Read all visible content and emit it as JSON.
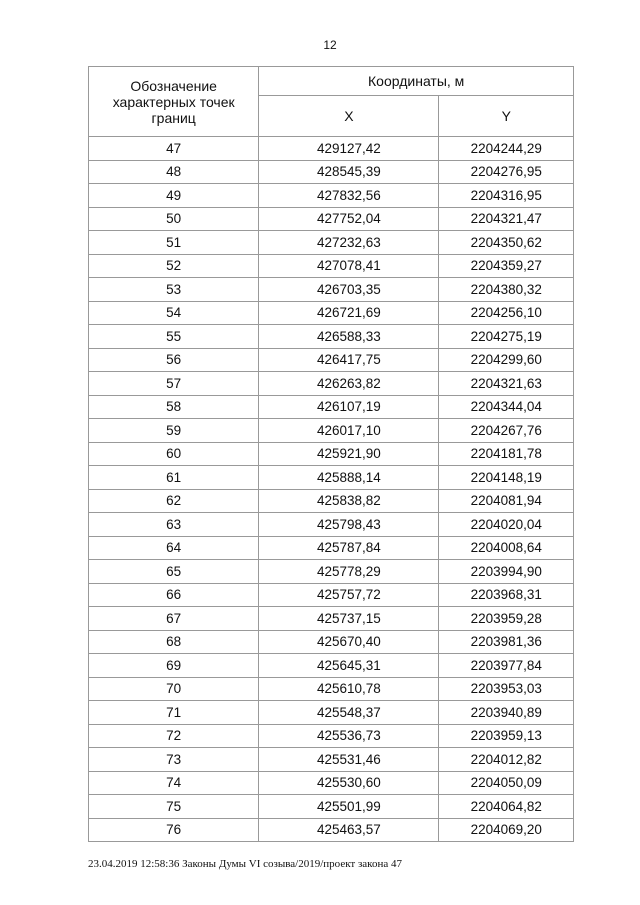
{
  "page_number": "12",
  "header": {
    "points_label": "Обозначение характерных точек границ",
    "coords_label": "Координаты, м",
    "x_label": "X",
    "y_label": "Y"
  },
  "rows": [
    [
      "47",
      "429127,42",
      "2204244,29"
    ],
    [
      "48",
      "428545,39",
      "2204276,95"
    ],
    [
      "49",
      "427832,56",
      "2204316,95"
    ],
    [
      "50",
      "427752,04",
      "2204321,47"
    ],
    [
      "51",
      "427232,63",
      "2204350,62"
    ],
    [
      "52",
      "427078,41",
      "2204359,27"
    ],
    [
      "53",
      "426703,35",
      "2204380,32"
    ],
    [
      "54",
      "426721,69",
      "2204256,10"
    ],
    [
      "55",
      "426588,33",
      "2204275,19"
    ],
    [
      "56",
      "426417,75",
      "2204299,60"
    ],
    [
      "57",
      "426263,82",
      "2204321,63"
    ],
    [
      "58",
      "426107,19",
      "2204344,04"
    ],
    [
      "59",
      "426017,10",
      "2204267,76"
    ],
    [
      "60",
      "425921,90",
      "2204181,78"
    ],
    [
      "61",
      "425888,14",
      "2204148,19"
    ],
    [
      "62",
      "425838,82",
      "2204081,94"
    ],
    [
      "63",
      "425798,43",
      "2204020,04"
    ],
    [
      "64",
      "425787,84",
      "2204008,64"
    ],
    [
      "65",
      "425778,29",
      "2203994,90"
    ],
    [
      "66",
      "425757,72",
      "2203968,31"
    ],
    [
      "67",
      "425737,15",
      "2203959,28"
    ],
    [
      "68",
      "425670,40",
      "2203981,36"
    ],
    [
      "69",
      "425645,31",
      "2203977,84"
    ],
    [
      "70",
      "425610,78",
      "2203953,03"
    ],
    [
      "71",
      "425548,37",
      "2203940,89"
    ],
    [
      "72",
      "425536,73",
      "2203959,13"
    ],
    [
      "73",
      "425531,46",
      "2204012,82"
    ],
    [
      "74",
      "425530,60",
      "2204050,09"
    ],
    [
      "75",
      "425501,99",
      "2204064,82"
    ],
    [
      "76",
      "425463,57",
      "2204069,20"
    ]
  ],
  "footer": "23.04.2019 12:58:36 Законы Думы VI созыва/2019/проект закона 47"
}
